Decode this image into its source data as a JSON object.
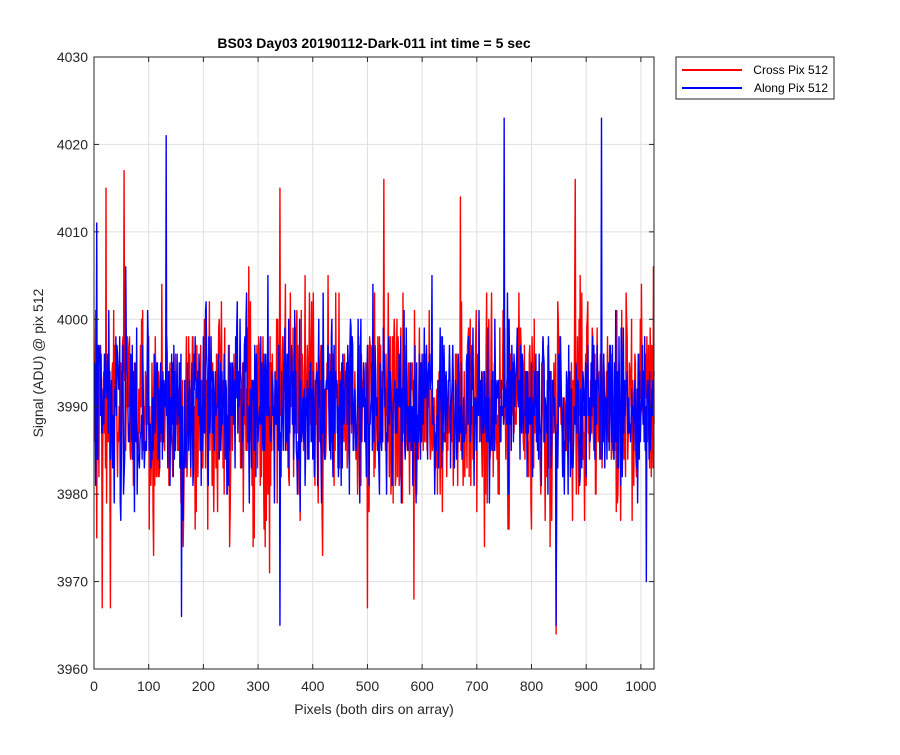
{
  "chart_data": {
    "type": "line",
    "title": "BS03 Day03 20190112-Dark-011 int time = 5 sec",
    "xlabel": "Pixels (both dirs on array)",
    "ylabel": "Signal (ADU) @ pix 512",
    "xlim": [
      0,
      1024
    ],
    "ylim": [
      3960,
      4030
    ],
    "xticks": [
      0,
      100,
      200,
      300,
      400,
      500,
      600,
      700,
      800,
      900,
      1000
    ],
    "yticks": [
      3960,
      3970,
      3980,
      3990,
      4000,
      4010,
      4020,
      4030
    ],
    "grid": true,
    "legend_position": "outside-top-right",
    "series": [
      {
        "name": "Cross Pix 512",
        "color": "#ff0000",
        "x_start": 1,
        "x_step": 1,
        "point_count": 1024,
        "mean": 3990,
        "std": 6,
        "y_min": 3964,
        "y_max": 4017,
        "extremes": [
          {
            "x": 5,
            "y": 3975
          },
          {
            "x": 15,
            "y": 3967
          },
          {
            "x": 22,
            "y": 4015
          },
          {
            "x": 30,
            "y": 3967
          },
          {
            "x": 55,
            "y": 4017
          },
          {
            "x": 340,
            "y": 4015
          },
          {
            "x": 500,
            "y": 3967
          },
          {
            "x": 530,
            "y": 4016
          },
          {
            "x": 585,
            "y": 3968
          },
          {
            "x": 670,
            "y": 4014
          },
          {
            "x": 845,
            "y": 3964
          },
          {
            "x": 880,
            "y": 4016
          },
          {
            "x": 1023,
            "y": 4006
          }
        ]
      },
      {
        "name": "Along Pix 512",
        "color": "#0000ff",
        "x_start": 1,
        "x_step": 1,
        "point_count": 1024,
        "mean": 3990,
        "std": 5,
        "y_min": 3965,
        "y_max": 4023,
        "extremes": [
          {
            "x": 5,
            "y": 4011
          },
          {
            "x": 132,
            "y": 4021
          },
          {
            "x": 160,
            "y": 3966
          },
          {
            "x": 340,
            "y": 3965
          },
          {
            "x": 750,
            "y": 4023
          },
          {
            "x": 845,
            "y": 3965
          },
          {
            "x": 928,
            "y": 4023
          },
          {
            "x": 1010,
            "y": 3970
          }
        ]
      }
    ]
  }
}
